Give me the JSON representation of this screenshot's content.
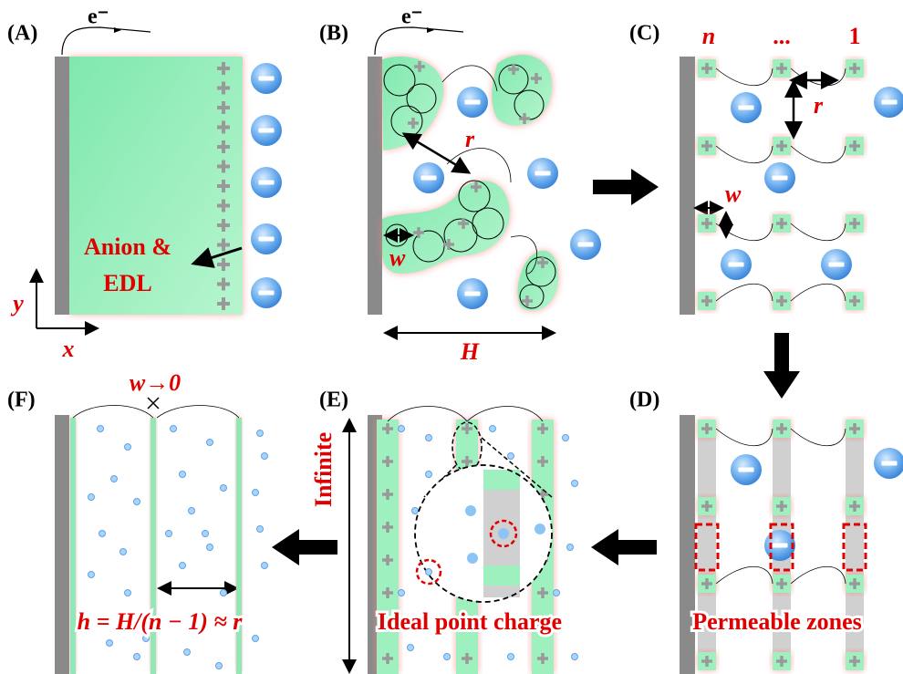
{
  "panels": {
    "A": {
      "label": "(A)",
      "electron": "e⁻",
      "annotation": [
        "Anion &",
        "EDL"
      ],
      "axis_y": "y",
      "axis_x": "x"
    },
    "B": {
      "label": "(B)",
      "electron": "e⁻",
      "r": "r",
      "w": "w",
      "H": "H"
    },
    "C": {
      "label": "(C)",
      "columns": [
        "n",
        "...",
        "1"
      ],
      "r": "r",
      "w": "w"
    },
    "D": {
      "label": "(D)",
      "caption": "Permeable zones"
    },
    "E": {
      "label": "(E)",
      "side": "Infinite",
      "caption": "Ideal point charge"
    },
    "F": {
      "label": "(F)",
      "top": "w→0",
      "caption": "h = H/(n − 1) ≈ r"
    }
  }
}
